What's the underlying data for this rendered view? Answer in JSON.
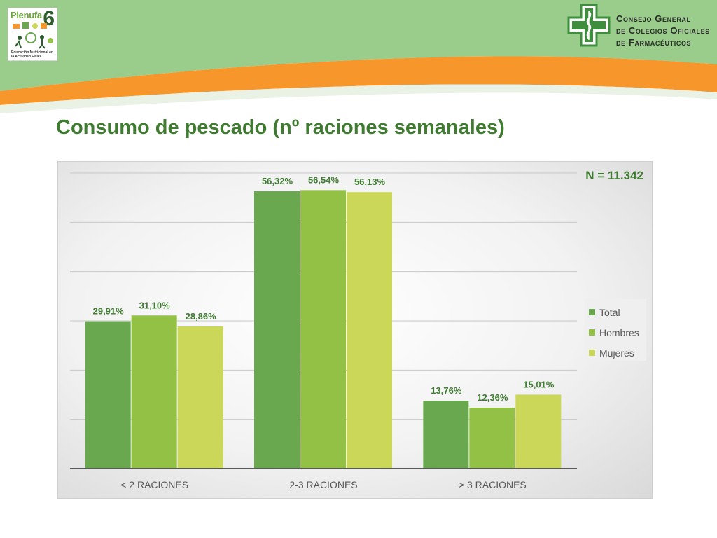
{
  "slide": {
    "title": "Consumo de pescado (nº raciones semanales)",
    "sample_size": "N = 11.342"
  },
  "logos": {
    "left": {
      "brand": "Plenufa",
      "number": "6",
      "tagline": "Educación Nutricional en la Actividad Física"
    },
    "right": {
      "org_lines": [
        "Consejo General",
        "de Colegios Oficiales",
        "de Farmacéuticos"
      ]
    }
  },
  "colors": {
    "header_green": "#9acd8b",
    "header_orange": "#f6962b",
    "title_green": "#3f7c31",
    "total": "#6aa84f",
    "hombres": "#93c146",
    "mujeres": "#cad758",
    "label_green": "#3f7c31"
  },
  "chart_data": {
    "type": "bar",
    "categories": [
      "< 2 RACIONES",
      "2-3 RACIONES",
      "> 3 RACIONES"
    ],
    "series": [
      {
        "name": "Total",
        "values": [
          29.91,
          56.32,
          13.76
        ],
        "labels": [
          "29,91%",
          "56,32%",
          "13,76%"
        ],
        "color": "#6aa84f"
      },
      {
        "name": "Hombres",
        "values": [
          31.1,
          56.54,
          12.36
        ],
        "labels": [
          "31,10%",
          "56,54%",
          "12,36%"
        ],
        "color": "#93c146"
      },
      {
        "name": "Mujeres",
        "values": [
          28.86,
          56.13,
          15.01
        ],
        "labels": [
          "28,86%",
          "56,13%",
          "15,01%"
        ],
        "color": "#cad758"
      }
    ],
    "ylim": [
      0,
      60
    ],
    "y_axis_labels_visible": false,
    "grid": true,
    "legend_position": "right",
    "xlabel": "",
    "ylabel": ""
  }
}
